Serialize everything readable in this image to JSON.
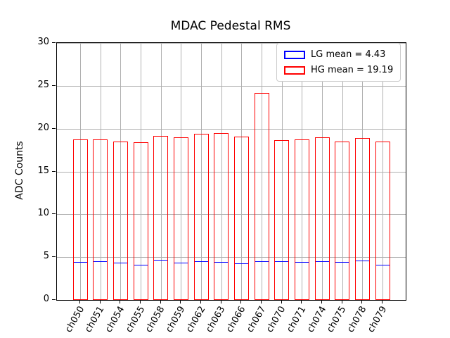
{
  "figure": {
    "title": "MDAC Pedestal RMS"
  },
  "chart_data": {
    "type": "bar",
    "title": "MDAC Pedestal RMS",
    "xlabel": "",
    "ylabel": "ADC Counts",
    "ylim": [
      0,
      30
    ],
    "yticks": [
      0,
      5,
      10,
      15,
      20,
      25,
      30
    ],
    "grid": true,
    "legend_position": "upper right",
    "bar_style": "outlined, transparent fill",
    "categories": [
      "ch050",
      "ch051",
      "ch054",
      "ch055",
      "ch058",
      "ch059",
      "ch062",
      "ch063",
      "ch066",
      "ch067",
      "ch070",
      "ch071",
      "ch074",
      "ch075",
      "ch078",
      "ch079"
    ],
    "series": [
      {
        "name": "LG",
        "legend_label": "LG mean = 4.43",
        "mean": 4.43,
        "color": "#0000ff",
        "values": [
          4.47,
          4.5,
          4.33,
          4.15,
          4.65,
          4.37,
          4.53,
          4.47,
          4.31,
          4.5,
          4.5,
          4.42,
          4.5,
          4.42,
          4.6,
          4.12
        ]
      },
      {
        "name": "HG",
        "legend_label": "HG mean = 19.19",
        "mean": 19.19,
        "color": "#ff0000",
        "values": [
          18.7,
          18.72,
          18.47,
          18.38,
          19.12,
          19.0,
          19.4,
          19.52,
          19.1,
          24.2,
          18.67,
          18.72,
          18.95,
          18.52,
          18.9,
          18.47
        ]
      }
    ],
    "colors": {
      "grid": "#b0b0b0",
      "spine": "#000000",
      "text": "#000000",
      "legend_border": "#cccccc",
      "background": "#ffffff"
    }
  }
}
